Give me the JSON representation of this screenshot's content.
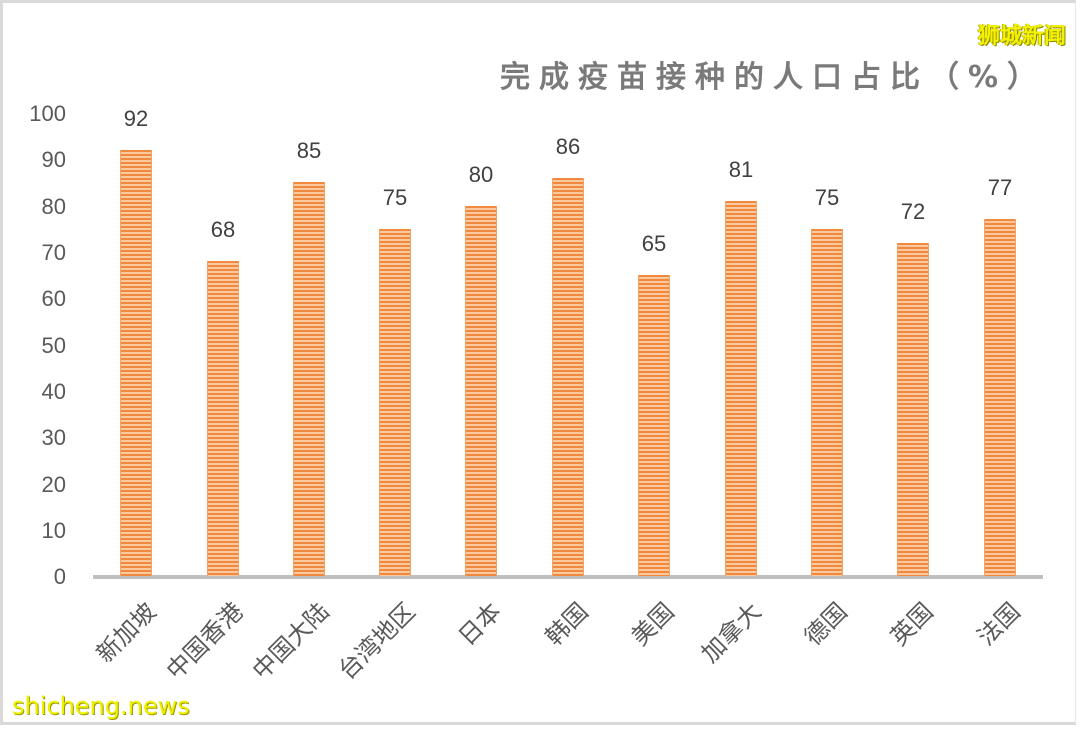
{
  "title": "完成疫苗接种的人口占比（%）",
  "watermarks": {
    "top_right": "狮城新闻",
    "bottom_left": "shicheng.news"
  },
  "colors": {
    "bar": "#f0883e",
    "bar_stripe": "#fbc9a0",
    "axis": "#bfbfbf",
    "title": "#7a7a7a"
  },
  "y_ticks": [
    "100",
    "90",
    "80",
    "70",
    "60",
    "50",
    "40",
    "30",
    "20",
    "10",
    "0"
  ],
  "bars": [
    {
      "label": "新加坡",
      "value": "92"
    },
    {
      "label": "中国香港",
      "value": "68"
    },
    {
      "label": "中国大陆",
      "value": "85"
    },
    {
      "label": "台湾地区",
      "value": "75"
    },
    {
      "label": "日本",
      "value": "80"
    },
    {
      "label": "韩国",
      "value": "86"
    },
    {
      "label": "美国",
      "value": "65"
    },
    {
      "label": "加拿大",
      "value": "81"
    },
    {
      "label": "德国",
      "value": "75"
    },
    {
      "label": "英国",
      "value": "72"
    },
    {
      "label": "法国",
      "value": "77"
    }
  ],
  "chart_data": {
    "type": "bar",
    "title": "完成疫苗接种的人口占比（%）",
    "categories": [
      "新加坡",
      "中国香港",
      "中国大陆",
      "台湾地区",
      "日本",
      "韩国",
      "美国",
      "加拿大",
      "德国",
      "英国",
      "法国"
    ],
    "values": [
      92,
      68,
      85,
      75,
      80,
      86,
      65,
      81,
      75,
      72,
      77
    ],
    "xlabel": "",
    "ylabel": "",
    "ylim": [
      0,
      100
    ],
    "yticks": [
      0,
      10,
      20,
      30,
      40,
      50,
      60,
      70,
      80,
      90,
      100
    ],
    "grid": false,
    "legend": null,
    "data_labels": true
  }
}
